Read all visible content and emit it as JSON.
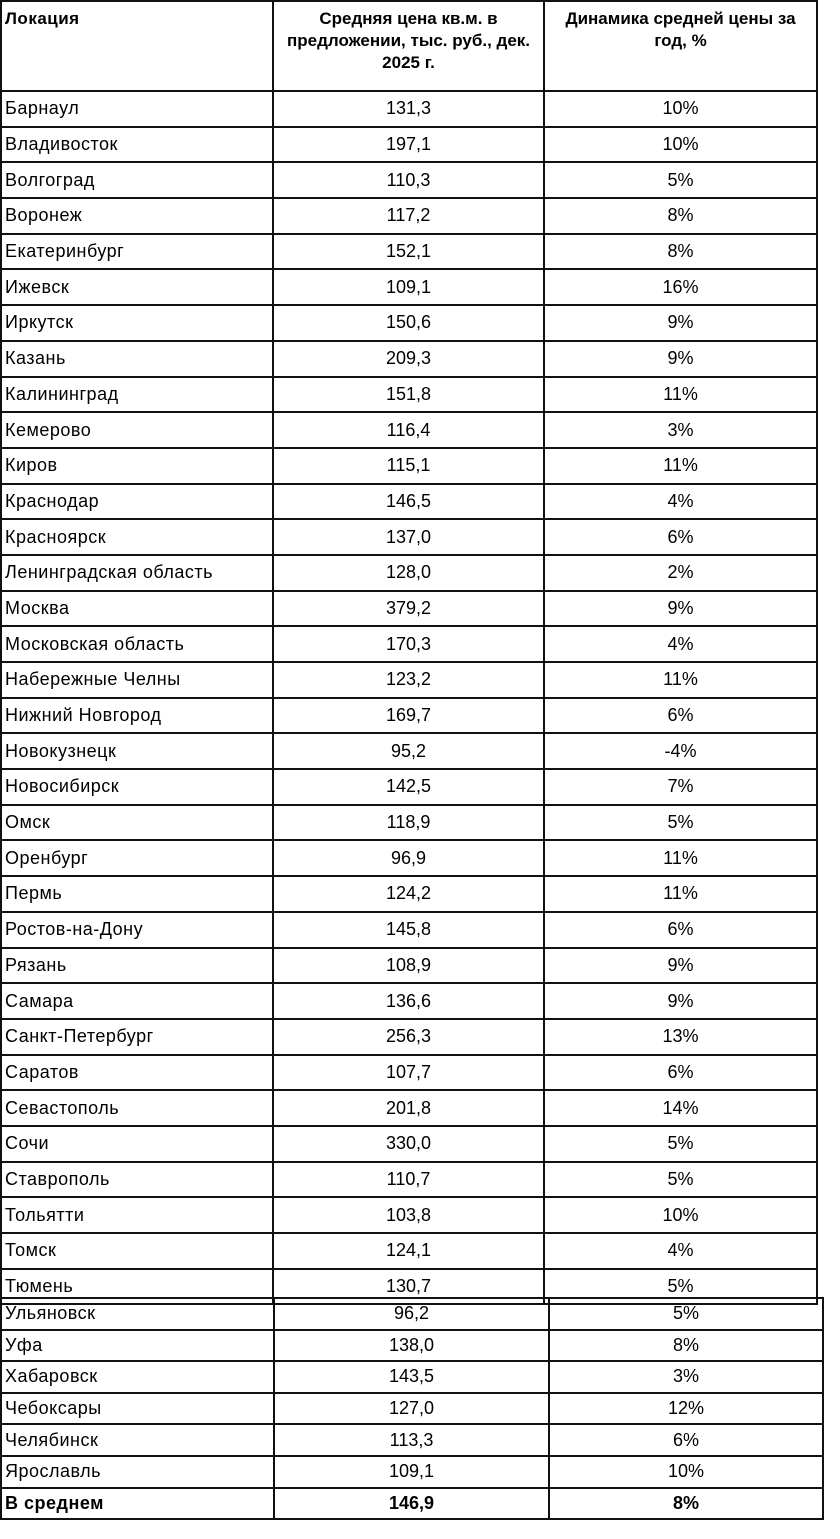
{
  "header": {
    "location": "Локация",
    "price": "Средняя цена кв.м. в предложении, тыс. руб., дек. 2025 г.",
    "dynamics": "Динамика средней цены за год, %"
  },
  "rows_top": [
    {
      "location": "Барнаул",
      "price": "131,3",
      "dynamics": "10%"
    },
    {
      "location": "Владивосток",
      "price": "197,1",
      "dynamics": "10%"
    },
    {
      "location": "Волгоград",
      "price": "110,3",
      "dynamics": "5%"
    },
    {
      "location": "Воронеж",
      "price": "117,2",
      "dynamics": "8%"
    },
    {
      "location": "Екатеринбург",
      "price": "152,1",
      "dynamics": "8%"
    },
    {
      "location": "Ижевск",
      "price": "109,1",
      "dynamics": "16%"
    },
    {
      "location": "Иркутск",
      "price": "150,6",
      "dynamics": "9%"
    },
    {
      "location": "Казань",
      "price": "209,3",
      "dynamics": "9%"
    },
    {
      "location": "Калининград",
      "price": "151,8",
      "dynamics": "11%"
    },
    {
      "location": "Кемерово",
      "price": "116,4",
      "dynamics": "3%"
    },
    {
      "location": "Киров",
      "price": "115,1",
      "dynamics": "11%"
    },
    {
      "location": "Краснодар",
      "price": "146,5",
      "dynamics": "4%"
    },
    {
      "location": "Красноярск",
      "price": "137,0",
      "dynamics": "6%"
    },
    {
      "location": "Ленинградская область",
      "price": "128,0",
      "dynamics": "2%"
    },
    {
      "location": "Москва",
      "price": "379,2",
      "dynamics": "9%"
    },
    {
      "location": "Московская область",
      "price": "170,3",
      "dynamics": "4%"
    },
    {
      "location": "Набережные Челны",
      "price": "123,2",
      "dynamics": "11%"
    },
    {
      "location": "Нижний Новгород",
      "price": "169,7",
      "dynamics": "6%"
    },
    {
      "location": "Новокузнецк",
      "price": "95,2",
      "dynamics": "-4%"
    },
    {
      "location": "Новосибирск",
      "price": "142,5",
      "dynamics": "7%"
    },
    {
      "location": "Омск",
      "price": "118,9",
      "dynamics": "5%"
    },
    {
      "location": "Оренбург",
      "price": "96,9",
      "dynamics": "11%"
    },
    {
      "location": "Пермь",
      "price": "124,2",
      "dynamics": "11%"
    },
    {
      "location": "Ростов-на-Дону",
      "price": "145,8",
      "dynamics": "6%"
    },
    {
      "location": "Рязань",
      "price": "108,9",
      "dynamics": "9%"
    },
    {
      "location": "Самара",
      "price": "136,6",
      "dynamics": "9%"
    },
    {
      "location": "Санкт-Петербург",
      "price": "256,3",
      "dynamics": "13%"
    },
    {
      "location": "Саратов",
      "price": "107,7",
      "dynamics": "6%"
    },
    {
      "location": "Севастополь",
      "price": "201,8",
      "dynamics": "14%"
    },
    {
      "location": "Сочи",
      "price": "330,0",
      "dynamics": "5%"
    },
    {
      "location": "Ставрополь",
      "price": "110,7",
      "dynamics": "5%"
    },
    {
      "location": "Тольятти",
      "price": "103,8",
      "dynamics": "10%"
    },
    {
      "location": "Томск",
      "price": "124,1",
      "dynamics": "4%"
    },
    {
      "location": "Тюмень",
      "price": "130,7",
      "dynamics": "5%"
    }
  ],
  "rows_bottom": [
    {
      "location": "Ульяновск",
      "price": "96,2",
      "dynamics": "5%"
    },
    {
      "location": "Уфа",
      "price": "138,0",
      "dynamics": "8%"
    },
    {
      "location": "Хабаровск",
      "price": "143,5",
      "dynamics": "3%"
    },
    {
      "location": "Чебоксары",
      "price": "127,0",
      "dynamics": "12%"
    },
    {
      "location": "Челябинск",
      "price": "113,3",
      "dynamics": "6%"
    },
    {
      "location": "Ярославль",
      "price": "109,1",
      "dynamics": "10%"
    }
  ],
  "average": {
    "location": "В среднем",
    "price": "146,9",
    "dynamics": "8%"
  }
}
